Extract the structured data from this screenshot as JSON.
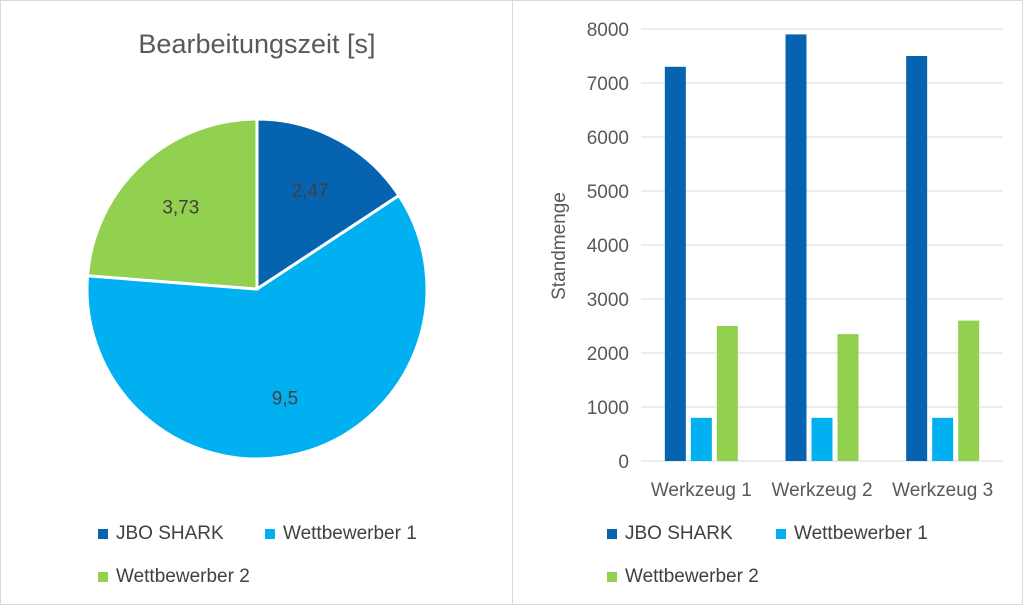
{
  "colors": {
    "series1": "#0563b0",
    "series2": "#00b0f0",
    "series3": "#92d050",
    "grid": "#d9d9d9",
    "text": "#595959"
  },
  "pie": {
    "chart_data": {
      "type": "pie",
      "title": "Bearbeitungszeit [s]",
      "labels": [
        "JBO SHARK",
        "Wettbewerber 1",
        "Wettbewerber 2"
      ],
      "values": [
        2.47,
        9.5,
        3.73
      ],
      "data_labels": [
        "2,47",
        "9,5",
        "3,73"
      ],
      "legend": "bottom"
    }
  },
  "bar": {
    "chart_data": {
      "type": "bar",
      "categories": [
        "Werkzeug 1",
        "Werkzeug 2",
        "Werkzeug 3"
      ],
      "series": [
        {
          "name": "JBO SHARK",
          "values": [
            7300,
            7900,
            7500
          ]
        },
        {
          "name": "Wettbewerber 1",
          "values": [
            800,
            800,
            800
          ]
        },
        {
          "name": "Wettbewerber 2",
          "values": [
            2500,
            2350,
            2600
          ]
        }
      ],
      "ylabel": "Standmenge",
      "ylim": [
        0,
        8000
      ],
      "yticks": [
        "0",
        "1000",
        "2000",
        "3000",
        "4000",
        "5000",
        "6000",
        "7000",
        "8000"
      ],
      "grid": true,
      "legend": "bottom"
    }
  }
}
